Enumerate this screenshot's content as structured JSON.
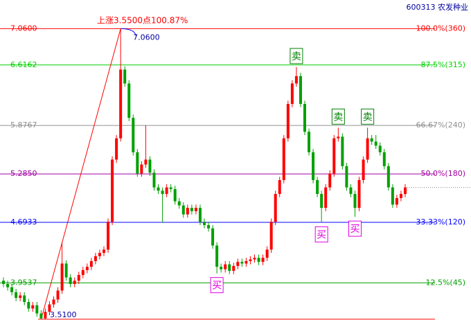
{
  "chart_data": {
    "type": "candlestick",
    "title": "600313 农发种业",
    "annotation": "上涨3.5500点100.87%",
    "up_color": "#ff0000",
    "down_color": "#00a000",
    "ylim": [
      3.39,
      7.41
    ],
    "open": [
      3.98,
      3.94,
      3.9,
      3.84,
      3.77,
      3.8,
      3.72,
      3.64,
      3.68,
      3.58,
      3.52,
      3.6,
      3.69,
      3.75,
      3.86,
      4.19,
      4.02,
      3.94,
      3.98,
      4.05,
      4.11,
      4.15,
      4.22,
      4.28,
      4.32,
      4.36,
      4.7,
      5.46,
      5.72,
      6.56,
      6.39,
      5.97,
      5.55,
      5.29,
      5.4,
      5.46,
      5.3,
      5.12,
      5.08,
      5.04,
      5.12,
      5.1,
      4.95,
      4.9,
      4.79,
      4.87,
      4.83,
      4.87,
      4.7,
      4.66,
      4.62,
      4.41,
      4.15,
      4.12,
      4.18,
      4.1,
      4.16,
      4.21,
      4.19,
      4.22,
      4.24,
      4.26,
      4.21,
      4.26,
      4.36,
      4.7,
      5.04,
      5.21,
      5.72,
      6.14,
      6.39,
      6.48,
      6.14,
      5.8,
      5.55,
      5.21,
      5.04,
      4.87,
      5.12,
      5.29,
      5.72,
      5.74,
      5.38,
      5.12,
      5.04,
      4.87,
      5.21,
      5.46,
      5.72,
      5.68,
      5.63,
      5.55,
      5.38,
      5.12,
      4.91,
      4.99,
      5.04
    ],
    "high": [
      4.02,
      3.98,
      3.94,
      3.88,
      3.84,
      3.84,
      3.76,
      3.72,
      3.72,
      3.62,
      3.64,
      3.73,
      3.79,
      3.9,
      4.45,
      4.23,
      4.06,
      4.02,
      4.09,
      4.15,
      4.19,
      4.26,
      4.32,
      4.36,
      4.4,
      4.74,
      5.5,
      5.76,
      7.06,
      6.6,
      6.43,
      6.01,
      5.59,
      5.44,
      5.88,
      5.5,
      5.34,
      5.16,
      5.12,
      5.16,
      5.16,
      5.14,
      4.99,
      4.94,
      4.91,
      4.91,
      4.91,
      4.91,
      4.74,
      4.7,
      4.66,
      4.45,
      4.19,
      4.22,
      4.22,
      4.2,
      4.25,
      4.25,
      4.26,
      4.28,
      4.3,
      4.3,
      4.3,
      4.4,
      4.74,
      5.08,
      5.25,
      5.76,
      6.18,
      6.43,
      6.59,
      6.52,
      6.18,
      5.84,
      5.59,
      5.25,
      5.08,
      5.16,
      5.33,
      5.76,
      5.85,
      5.78,
      5.42,
      5.16,
      5.08,
      5.25,
      5.5,
      5.85,
      5.76,
      5.76,
      5.67,
      5.59,
      5.42,
      5.16,
      5.03,
      5.08,
      5.16
    ],
    "low": [
      3.9,
      3.86,
      3.8,
      3.73,
      3.73,
      3.68,
      3.6,
      3.6,
      3.54,
      3.51,
      3.51,
      3.56,
      3.65,
      3.71,
      3.82,
      3.98,
      3.9,
      3.9,
      3.94,
      4.01,
      4.07,
      4.11,
      4.18,
      4.24,
      4.28,
      4.32,
      4.66,
      5.42,
      5.68,
      6.35,
      5.93,
      5.51,
      5.25,
      5.25,
      5.36,
      5.26,
      5.08,
      5.04,
      4.69,
      5.0,
      5.06,
      4.91,
      4.86,
      4.75,
      4.75,
      4.79,
      4.79,
      4.66,
      4.62,
      4.58,
      4.37,
      4.07,
      4.08,
      4.08,
      4.06,
      4.06,
      4.12,
      4.15,
      4.15,
      4.18,
      4.2,
      4.17,
      4.17,
      4.22,
      4.32,
      4.66,
      5.0,
      5.17,
      5.68,
      6.1,
      6.35,
      6.1,
      5.76,
      5.51,
      5.17,
      5.0,
      4.69,
      4.83,
      5.08,
      5.25,
      5.68,
      5.34,
      5.08,
      5.0,
      4.76,
      4.83,
      5.17,
      5.42,
      5.64,
      5.59,
      5.51,
      5.34,
      5.08,
      4.87,
      4.87,
      4.95,
      5.0
    ],
    "close": [
      3.94,
      3.9,
      3.84,
      3.77,
      3.8,
      3.72,
      3.64,
      3.68,
      3.58,
      3.52,
      3.6,
      3.69,
      3.75,
      3.86,
      4.19,
      4.02,
      3.94,
      3.98,
      4.05,
      4.11,
      4.15,
      4.22,
      4.28,
      4.32,
      4.36,
      4.7,
      5.46,
      5.72,
      6.56,
      6.39,
      5.97,
      5.55,
      5.29,
      5.4,
      5.46,
      5.3,
      5.12,
      5.08,
      5.04,
      5.12,
      5.1,
      4.95,
      4.9,
      4.79,
      4.87,
      4.83,
      4.87,
      4.7,
      4.66,
      4.62,
      4.41,
      4.15,
      4.12,
      4.18,
      4.1,
      4.16,
      4.21,
      4.19,
      4.22,
      4.24,
      4.26,
      4.21,
      4.26,
      4.36,
      4.7,
      5.04,
      5.21,
      5.72,
      6.14,
      6.39,
      6.48,
      6.14,
      5.8,
      5.55,
      5.21,
      5.04,
      4.87,
      5.12,
      5.29,
      5.72,
      5.74,
      5.38,
      5.12,
      5.04,
      4.87,
      5.21,
      5.46,
      5.72,
      5.68,
      5.63,
      5.55,
      5.38,
      5.12,
      4.91,
      4.99,
      5.04,
      5.12
    ],
    "levels": [
      {
        "price": {
          "value": 7.06,
          "label": "7.0600"
        },
        "label": "100.0%(360)",
        "color": "#ff0000"
      },
      {
        "price": {
          "value": 6.6162,
          "label": "6.6162"
        },
        "label": "87.5%(315)",
        "color": "#00d000"
      },
      {
        "price": {
          "value": 5.8767,
          "label": "5.8767"
        },
        "label": "66.67%(240)",
        "color": "#909090"
      },
      {
        "price": {
          "value": 5.285,
          "label": "5.2850"
        },
        "label": "50.0%(180)",
        "color": "#a000a0"
      },
      {
        "price": {
          "value": 4.6933,
          "label": "4.6933"
        },
        "label": "33.33%(120)",
        "color": "#0000ff"
      },
      {
        "price": {
          "value": 3.9537,
          "label": "3.9537"
        },
        "label": "12.5%(45)",
        "color": "#00a000"
      },
      {
        "price": {
          "value": 3.51,
          "label": "3.5100"
        },
        "color": "#ff0000"
      }
    ],
    "signals": [
      {
        "label": "卖",
        "index": 70,
        "color": "#008000"
      },
      {
        "label": "卖",
        "index": 80,
        "color": "#008000"
      },
      {
        "label": "卖",
        "index": 87,
        "color": "#008000"
      },
      {
        "label": "买",
        "index": 51,
        "color": "#e000e0"
      },
      {
        "label": "买",
        "index": 76,
        "color": "#e000e0"
      },
      {
        "label": "买",
        "index": 84,
        "color": "#e000e0"
      }
    ]
  }
}
